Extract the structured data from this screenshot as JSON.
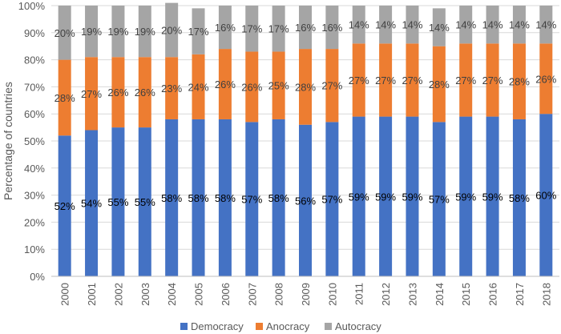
{
  "chart_data": {
    "type": "bar",
    "stacked": true,
    "title": "",
    "xlabel": "",
    "ylabel": "Percentage of countries",
    "ylim": [
      0,
      100
    ],
    "yticks": [
      "0%",
      "10%",
      "20%",
      "30%",
      "40%",
      "50%",
      "60%",
      "70%",
      "80%",
      "90%",
      "100%"
    ],
    "categories": [
      "2000",
      "2001",
      "2002",
      "2003",
      "2004",
      "2005",
      "2006",
      "2007",
      "2008",
      "2009",
      "2010",
      "2011",
      "2012",
      "2013",
      "2014",
      "2015",
      "2016",
      "2017",
      "2018"
    ],
    "series": [
      {
        "name": "Democracy",
        "color": "#4472C4",
        "values": [
          52,
          54,
          55,
          55,
          58,
          58,
          58,
          57,
          58,
          56,
          57,
          59,
          59,
          59,
          57,
          59,
          59,
          58,
          60
        ]
      },
      {
        "name": "Anocracy",
        "color": "#ED7D31",
        "values": [
          28,
          27,
          26,
          26,
          23,
          24,
          26,
          26,
          25,
          28,
          27,
          27,
          27,
          27,
          28,
          27,
          27,
          28,
          26
        ]
      },
      {
        "name": "Autocracy",
        "color": "#A5A5A5",
        "values": [
          20,
          19,
          19,
          19,
          20,
          17,
          16,
          17,
          17,
          16,
          16,
          14,
          14,
          14,
          14,
          14,
          14,
          14,
          14
        ]
      }
    ],
    "data_labels": [
      [
        "52%",
        "54%",
        "55%",
        "55%",
        "58%",
        "58%",
        "58%",
        "57%",
        "58%",
        "56%",
        "57%",
        "59%",
        "59%",
        "59%",
        "57%",
        "59%",
        "59%",
        "58%",
        "60%"
      ],
      [
        "28%",
        "27%",
        "26%",
        "26%",
        "23%",
        "24%",
        "26%",
        "26%",
        "25%",
        "28%",
        "27%",
        "27%",
        "27%",
        "27%",
        "28%",
        "27%",
        "27%",
        "28%",
        "26%"
      ],
      [
        "20%",
        "19%",
        "19%",
        "19%",
        "20%",
        "17%",
        "16%",
        "17%",
        "17%",
        "16%",
        "16%",
        "14%",
        "14%",
        "14%",
        "14%",
        "14%",
        "14%",
        "14%",
        "14%"
      ]
    ],
    "legend_position": "bottom",
    "grid": true
  }
}
